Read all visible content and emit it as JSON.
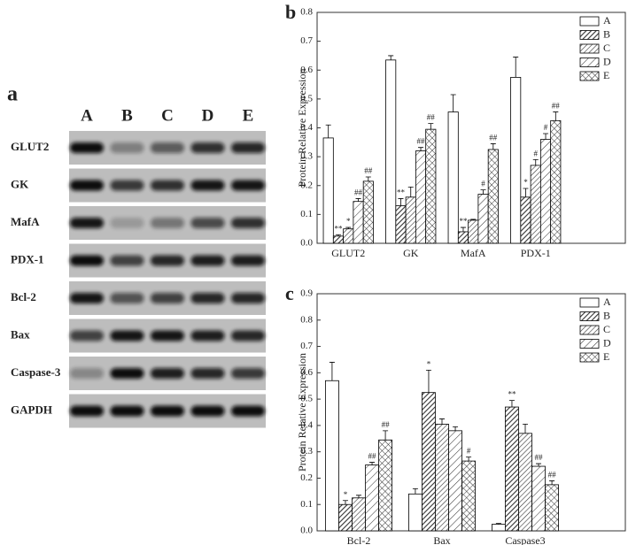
{
  "blot": {
    "panel": "a",
    "lanes": [
      "A",
      "B",
      "C",
      "D",
      "E"
    ],
    "proteins": [
      "GLUT2",
      "GK",
      "MafA",
      "PDX-1",
      "Bcl-2",
      "Bax",
      "Caspase-3",
      "GAPDH"
    ]
  },
  "chart_data": [
    {
      "type": "bar",
      "panel": "b",
      "y_label": "Protein Relative Expression",
      "categories": [
        "GLUT2",
        "GK",
        "MafA",
        "PDX-1"
      ],
      "ylim": [
        0,
        0.8
      ],
      "yticks": [
        {
          "value": 0,
          "label": "0.0"
        },
        {
          "value": 0.1,
          "label": "0.1"
        },
        {
          "value": 0.2,
          "label": "0.2"
        },
        {
          "value": 0.3,
          "label": "0.3"
        },
        {
          "value": 0.4,
          "label": "0.4"
        },
        {
          "value": 0.5,
          "label": "0.5"
        },
        {
          "value": 0.6,
          "label": "0.6"
        },
        {
          "value": 0.7,
          "label": "0.7"
        },
        {
          "value": 0.8,
          "label": "0.8"
        }
      ],
      "legend": "upper right",
      "series": [
        {
          "name": "A",
          "color": "#000000",
          "pattern": "none",
          "values": [
            0.365,
            0.635,
            0.455,
            0.575
          ],
          "errors": [
            0.045,
            0.015,
            0.06,
            0.07
          ],
          "annotations": [
            null,
            null,
            null,
            null
          ]
        },
        {
          "name": "B",
          "color": "#000000",
          "pattern": "dense",
          "values": [
            0.025,
            0.13,
            0.04,
            0.16
          ],
          "errors": [
            0.005,
            0.025,
            0.015,
            0.03
          ],
          "annotations": [
            "**",
            "**",
            "**",
            "*"
          ]
        },
        {
          "name": "C",
          "color": "#000000",
          "pattern": "diagonal",
          "values": [
            0.05,
            0.16,
            0.08,
            0.27
          ],
          "errors": [
            0.005,
            0.035,
            0.003,
            0.02
          ],
          "annotations": [
            "*",
            null,
            null,
            "#"
          ]
        },
        {
          "name": "D",
          "color": "#000000",
          "pattern": "sparse",
          "values": [
            0.145,
            0.32,
            0.17,
            0.36
          ],
          "errors": [
            0.01,
            0.012,
            0.015,
            0.02
          ],
          "annotations": [
            "##",
            "##",
            "#",
            "#"
          ]
        },
        {
          "name": "E",
          "color": "#000000",
          "pattern": "cross",
          "values": [
            0.215,
            0.395,
            0.325,
            0.425
          ],
          "errors": [
            0.015,
            0.02,
            0.02,
            0.03
          ],
          "annotations": [
            "##",
            "##",
            "##",
            "##"
          ]
        }
      ]
    },
    {
      "type": "bar",
      "panel": "c",
      "y_label": "Protein Relative Expression",
      "categories": [
        "Bcl-2",
        "Bax",
        "Caspase3"
      ],
      "ylim": [
        0,
        0.9
      ],
      "yticks": [
        {
          "value": 0,
          "label": "0.0"
        },
        {
          "value": 0.1,
          "label": "0.1"
        },
        {
          "value": 0.2,
          "label": "0.2"
        },
        {
          "value": 0.3,
          "label": "0.3"
        },
        {
          "value": 0.4,
          "label": "0.4"
        },
        {
          "value": 0.5,
          "label": "0.5"
        },
        {
          "value": 0.6,
          "label": "0.6"
        },
        {
          "value": 0.7,
          "label": "0.7"
        },
        {
          "value": 0.8,
          "label": "0.8"
        },
        {
          "value": 0.9,
          "label": "0.9"
        }
      ],
      "legend": "upper right",
      "series": [
        {
          "name": "A",
          "color": "#000000",
          "pattern": "none",
          "values": [
            0.57,
            0.14,
            0.025
          ],
          "errors": [
            0.07,
            0.02,
            0.003
          ],
          "annotations": [
            null,
            null,
            null
          ]
        },
        {
          "name": "B",
          "color": "#000000",
          "pattern": "dense",
          "values": [
            0.1,
            0.525,
            0.47
          ],
          "errors": [
            0.015,
            0.085,
            0.025
          ],
          "annotations": [
            "*",
            "*",
            "**"
          ]
        },
        {
          "name": "C",
          "color": "#000000",
          "pattern": "diagonal",
          "values": [
            0.125,
            0.405,
            0.37
          ],
          "errors": [
            0.01,
            0.02,
            0.035
          ],
          "annotations": [
            null,
            null,
            null
          ]
        },
        {
          "name": "D",
          "color": "#000000",
          "pattern": "sparse",
          "values": [
            0.25,
            0.38,
            0.245
          ],
          "errors": [
            0.01,
            0.015,
            0.01
          ],
          "annotations": [
            "##",
            null,
            "##"
          ]
        },
        {
          "name": "E",
          "color": "#000000",
          "pattern": "cross",
          "values": [
            0.345,
            0.265,
            0.175
          ],
          "errors": [
            0.035,
            0.015,
            0.015
          ],
          "annotations": [
            "##",
            "#",
            "##"
          ]
        }
      ]
    }
  ]
}
